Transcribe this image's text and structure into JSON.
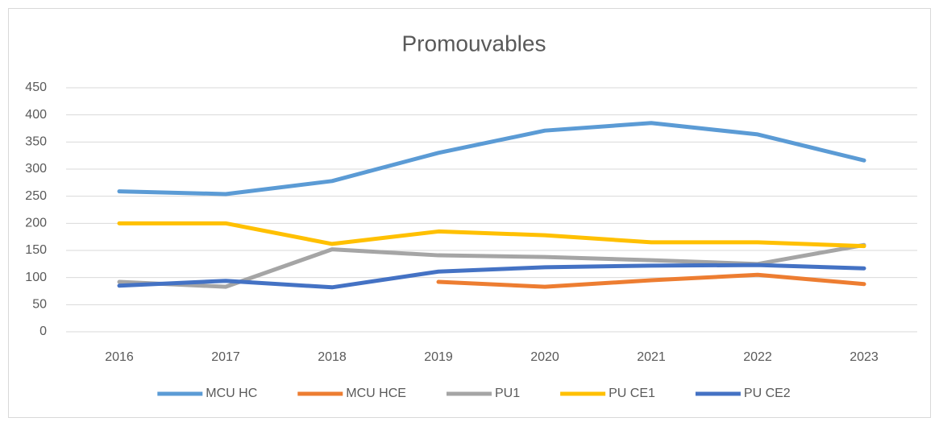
{
  "chart_data": {
    "type": "line",
    "title": "Promouvables",
    "categories": [
      "2016",
      "2017",
      "2018",
      "2019",
      "2020",
      "2021",
      "2022",
      "2023"
    ],
    "series": [
      {
        "name": "MCU HC",
        "color": "#5b9bd5",
        "values": [
          259,
          254,
          278,
          330,
          371,
          385,
          364,
          316
        ]
      },
      {
        "name": "MCU HCE",
        "color": "#ed7d31",
        "values": [
          null,
          null,
          null,
          92,
          83,
          95,
          105,
          88
        ]
      },
      {
        "name": "PU1",
        "color": "#a5a5a5",
        "values": [
          92,
          83,
          152,
          141,
          138,
          132,
          125,
          160
        ]
      },
      {
        "name": "PU CE1",
        "color": "#ffc000",
        "values": [
          200,
          200,
          162,
          185,
          178,
          165,
          165,
          158
        ]
      },
      {
        "name": "PU CE2",
        "color": "#4472c4",
        "values": [
          85,
          94,
          82,
          111,
          119,
          122,
          123,
          117
        ]
      }
    ],
    "ylim": [
      0,
      450
    ],
    "yticks": [
      0,
      50,
      100,
      150,
      200,
      250,
      300,
      350,
      400,
      450
    ],
    "grid": true,
    "legend": "bottom"
  }
}
